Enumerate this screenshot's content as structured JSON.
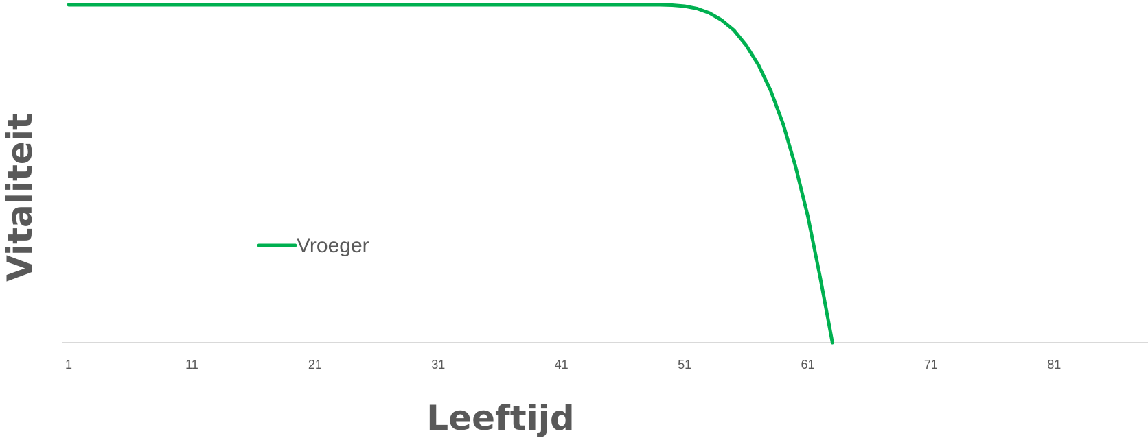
{
  "chart_data": {
    "type": "line",
    "xlabel": "Leeftijd",
    "ylabel": "Vitaliteit",
    "x_tick_labels": [
      "1",
      "11",
      "21",
      "31",
      "41",
      "51",
      "61",
      "71",
      "81"
    ],
    "x_range": [
      1,
      90
    ],
    "ylim": [
      0,
      100
    ],
    "grid": false,
    "legend_position": "left-center",
    "series": [
      {
        "name": "Vroeger",
        "color": "#00B050",
        "x": [
          1,
          49,
          50,
          51,
          52,
          53,
          54,
          55,
          56,
          57,
          58,
          59,
          60,
          61,
          62,
          63
        ],
        "y": [
          100,
          100,
          99.9,
          99.6,
          98.9,
          97.6,
          95.5,
          92.5,
          88,
          82.2,
          74.5,
          64.7,
          52.2,
          37.5,
          19.5,
          0
        ]
      }
    ]
  }
}
